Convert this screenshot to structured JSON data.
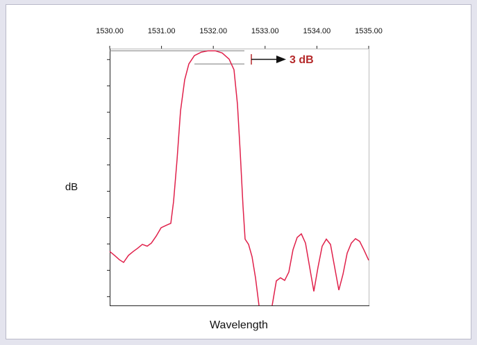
{
  "chart_data": {
    "type": "line",
    "x_label": "Wavelength",
    "y_label": "dB",
    "annotation": "3 dB",
    "reference_lines": [
      0,
      -3
    ],
    "xlim": [
      1530,
      1535
    ],
    "xticks": [
      {
        "value": 1530,
        "label": "1530.00"
      },
      {
        "value": 1531,
        "label": "1531.00"
      },
      {
        "value": 1532,
        "label": "1532.00"
      },
      {
        "value": 1533,
        "label": "1533.00"
      },
      {
        "value": 1534,
        "label": "1534.00"
      },
      {
        "value": 1535,
        "label": "1535.00"
      }
    ],
    "ylim": [
      -58,
      0.5
    ],
    "yticks": [
      -56,
      -50,
      -44,
      -38,
      -32,
      -26,
      -20,
      -14,
      -8,
      -2
    ],
    "series": [
      {
        "color": "#e0204a",
        "x": [
          1530.0,
          1530.094,
          1530.188,
          1530.268,
          1530.362,
          1530.456,
          1530.536,
          1530.63,
          1530.724,
          1530.804,
          1530.898,
          1530.992,
          1531.099,
          1531.18,
          1531.233,
          1531.3,
          1531.367,
          1531.448,
          1531.528,
          1531.635,
          1531.769,
          1531.903,
          1532.038,
          1532.172,
          1532.306,
          1532.399,
          1532.466,
          1532.52,
          1532.574,
          1532.614,
          1532.681,
          1532.748,
          1532.815,
          1532.882,
          null,
          1533.137,
          1533.217,
          1533.298,
          1533.378,
          1533.458,
          1533.539,
          1533.619,
          1533.7,
          1533.78,
          1533.861,
          1533.941,
          1534.021,
          1534.102,
          1534.182,
          1534.263,
          1534.343,
          1534.424,
          1534.504,
          1534.584,
          1534.665,
          1534.745,
          1534.826,
          1534.906,
          1535.0
        ],
        "values": [
          -45.7,
          -46.6,
          -47.6,
          -48.2,
          -46.6,
          -45.7,
          -45.0,
          -44.1,
          -44.5,
          -43.8,
          -42.2,
          -40.3,
          -39.7,
          -39.3,
          -34.3,
          -24.8,
          -13.7,
          -6.6,
          -3.0,
          -1.1,
          -0.3,
          0,
          0,
          -0.5,
          -1.9,
          -4.3,
          -12.2,
          -23.2,
          -35.4,
          -42.9,
          -44.1,
          -46.9,
          -51.7,
          -58.0,
          null,
          -58.0,
          -52.4,
          -51.7,
          -52.3,
          -50.4,
          -45.3,
          -42.5,
          -41.7,
          -43.8,
          -49.3,
          -54.8,
          -49.3,
          -44.5,
          -42.9,
          -44.1,
          -49.3,
          -54.5,
          -50.9,
          -46.1,
          -43.8,
          -42.8,
          -43.4,
          -45.3,
          -47.7
        ]
      }
    ]
  }
}
